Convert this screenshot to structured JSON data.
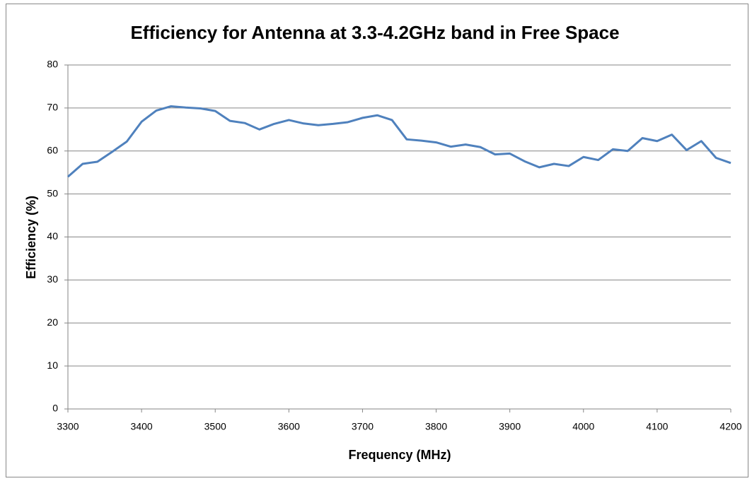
{
  "chart_data": {
    "type": "line",
    "title": "Efficiency for Antenna at 3.3-4.2GHz band in Free Space",
    "x_label": "Frequency  (MHz)",
    "y_label": "Efficiency (%)",
    "x": [
      3300,
      3320,
      3340,
      3360,
      3380,
      3400,
      3420,
      3440,
      3460,
      3480,
      3500,
      3520,
      3540,
      3560,
      3580,
      3600,
      3620,
      3640,
      3660,
      3680,
      3700,
      3720,
      3740,
      3760,
      3780,
      3800,
      3820,
      3840,
      3860,
      3880,
      3900,
      3920,
      3940,
      3960,
      3980,
      4000,
      4020,
      4040,
      4060,
      4080,
      4100,
      4120,
      4140,
      4160,
      4180,
      4200
    ],
    "series": [
      {
        "color": "#4f81bd",
        "values": [
          54.0,
          57.0,
          57.5,
          59.8,
          62.2,
          66.8,
          69.4,
          70.4,
          70.1,
          69.9,
          69.3,
          67.0,
          66.5,
          65.0,
          66.3,
          67.2,
          66.4,
          66.0,
          66.3,
          66.7,
          67.7,
          68.3,
          67.2,
          62.7,
          62.4,
          62.0,
          61.0,
          61.5,
          60.9,
          59.2,
          59.4,
          57.6,
          56.2,
          57.0,
          56.5,
          58.6,
          57.9,
          60.4,
          60.0,
          63.0,
          62.3,
          63.8,
          60.2,
          62.3,
          58.4,
          57.2
        ]
      }
    ],
    "xlim": [
      3300,
      4200
    ],
    "xticks": [
      3300,
      3400,
      3500,
      3600,
      3700,
      3800,
      3900,
      4000,
      4100,
      4200
    ],
    "ylim": [
      0,
      80
    ],
    "yticks": [
      0,
      10,
      20,
      30,
      40,
      50,
      60,
      70,
      80
    ],
    "grid": true
  }
}
